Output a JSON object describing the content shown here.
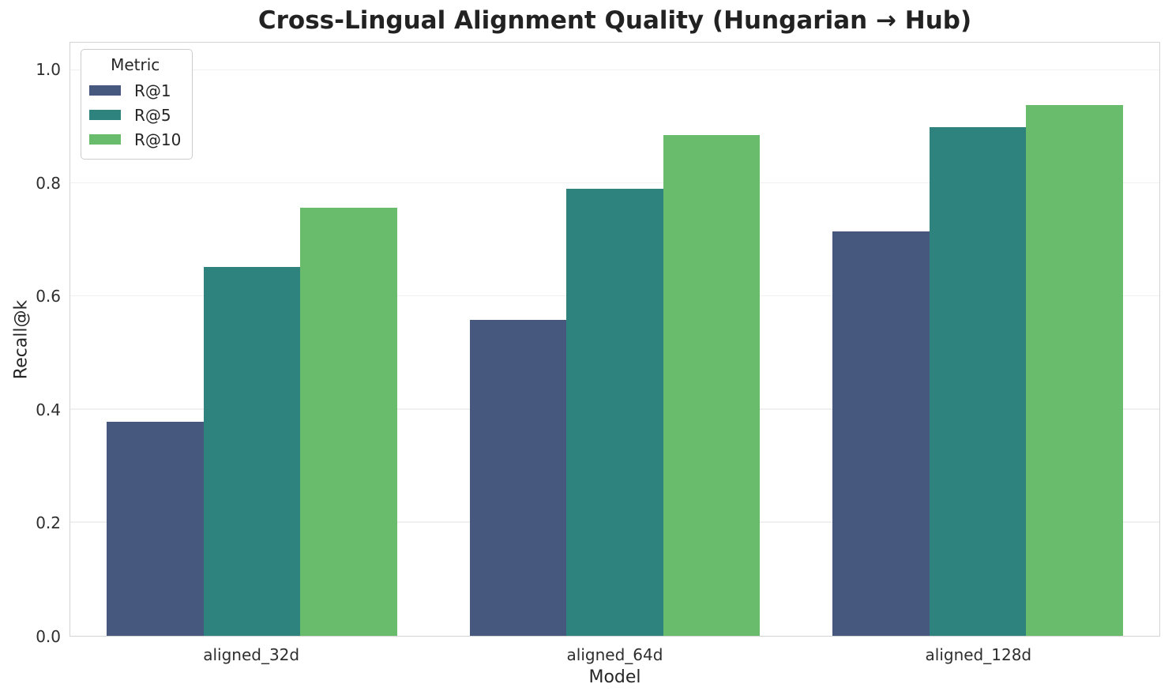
{
  "chart_data": {
    "type": "bar",
    "title": "Cross-Lingual Alignment Quality (Hungarian → Hub)",
    "xlabel": "Model",
    "ylabel": "Recall@k",
    "categories": [
      "aligned_32d",
      "aligned_64d",
      "aligned_128d"
    ],
    "series": [
      {
        "name": "R@1",
        "color": "#46587d",
        "values": [
          0.378,
          0.559,
          0.715
        ]
      },
      {
        "name": "R@5",
        "color": "#2e837e",
        "values": [
          0.652,
          0.79,
          0.9
        ]
      },
      {
        "name": "R@10",
        "color": "#69bc6c",
        "values": [
          0.757,
          0.885,
          0.938
        ]
      }
    ],
    "yticks": [
      0.0,
      0.2,
      0.4,
      0.6,
      0.8,
      1.0
    ],
    "ylim": [
      0,
      1.049
    ],
    "legend_title": "Metric",
    "legend_position": "upper-left",
    "grid": "horizontal",
    "bar_width_fraction": 0.08893
  },
  "style_colors": {
    "grid": "#f0f0f0",
    "spine": "#d4d4d4",
    "text": "#262626"
  }
}
